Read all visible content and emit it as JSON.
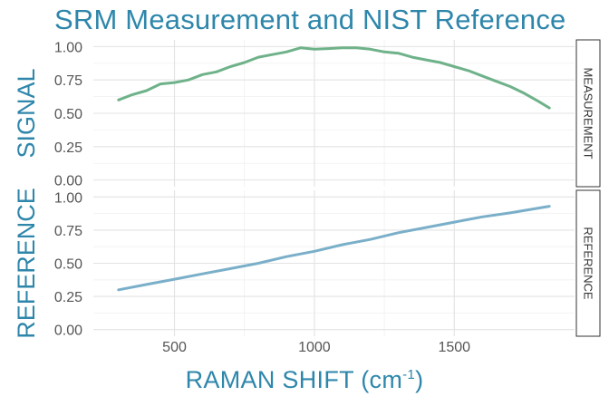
{
  "chart_data": {
    "type": "line",
    "title": "SRM Measurement and NIST Reference",
    "xlabel_main": "RAMAN SHIFT (cm",
    "xlabel_sup": "-1",
    "xlabel_end": ")",
    "xlim": [
      210,
      1930
    ],
    "x_ticks": [
      500,
      1000,
      1500
    ],
    "x_tick_labels": [
      "500",
      "1000",
      "1500"
    ],
    "grid": true,
    "panels": [
      {
        "ylabel": "SIGNAL",
        "strip_label": "MEASUREMENT",
        "ylim": [
          -0.05,
          1.05
        ],
        "y_ticks": [
          0,
          0.25,
          0.5,
          0.75,
          1.0
        ],
        "y_tick_labels": [
          "0.00",
          "0.25",
          "0.50",
          "0.75",
          "1.00"
        ],
        "series": [
          {
            "color": "#6fb28a",
            "x": [
              300,
              350,
              400,
              450,
              500,
              550,
              600,
              650,
              700,
              750,
              800,
              850,
              900,
              950,
              1000,
              1050,
              1100,
              1150,
              1200,
              1250,
              1300,
              1350,
              1400,
              1450,
              1500,
              1550,
              1600,
              1650,
              1700,
              1750,
              1800,
              1840
            ],
            "y": [
              0.6,
              0.64,
              0.67,
              0.72,
              0.73,
              0.75,
              0.79,
              0.81,
              0.85,
              0.88,
              0.92,
              0.94,
              0.96,
              0.99,
              0.98,
              0.985,
              0.99,
              0.99,
              0.98,
              0.96,
              0.95,
              0.92,
              0.9,
              0.88,
              0.85,
              0.82,
              0.78,
              0.74,
              0.7,
              0.65,
              0.59,
              0.54
            ]
          }
        ]
      },
      {
        "ylabel": "REFERENCE",
        "strip_label": "REFERENCE",
        "ylim": [
          -0.05,
          1.05
        ],
        "y_ticks": [
          0,
          0.25,
          0.5,
          0.75,
          1.0
        ],
        "y_tick_labels": [
          "0.00",
          "0.25",
          "0.50",
          "0.75",
          "1.00"
        ],
        "series": [
          {
            "color": "#7aafc9",
            "x": [
              300,
              400,
              500,
              600,
              700,
              800,
              900,
              1000,
              1100,
              1200,
              1300,
              1400,
              1500,
              1600,
              1700,
              1840
            ],
            "y": [
              0.3,
              0.34,
              0.38,
              0.42,
              0.46,
              0.5,
              0.55,
              0.59,
              0.64,
              0.68,
              0.73,
              0.77,
              0.81,
              0.85,
              0.88,
              0.93
            ]
          }
        ]
      }
    ]
  }
}
